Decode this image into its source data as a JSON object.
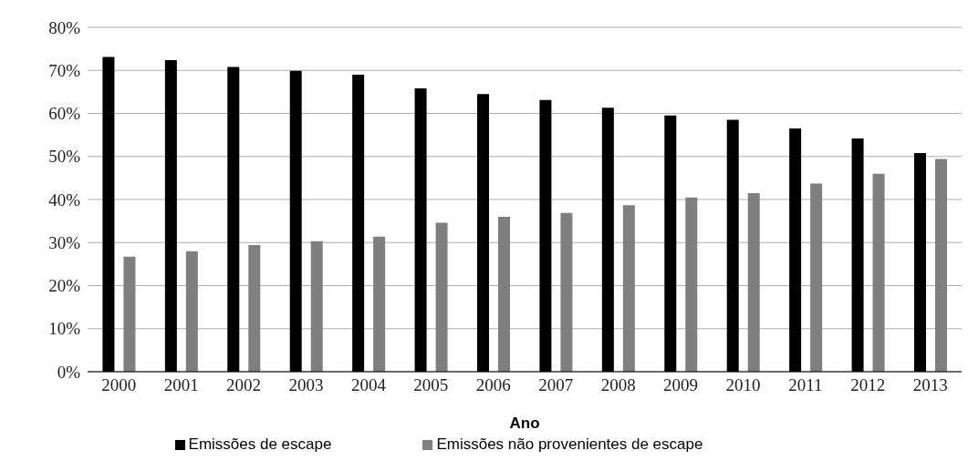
{
  "chart_data": {
    "type": "bar",
    "xlabel": "Ano",
    "categories": [
      "2000",
      "2001",
      "2002",
      "2003",
      "2004",
      "2005",
      "2006",
      "2007",
      "2008",
      "2009",
      "2010",
      "2011",
      "2012",
      "2013"
    ],
    "series": [
      {
        "name": "Emissões de escape",
        "color": "#000000",
        "values": [
          73.1,
          72.4,
          70.8,
          69.9,
          69.0,
          65.8,
          64.5,
          63.1,
          61.3,
          59.5,
          58.5,
          56.5,
          54.2,
          50.8
        ]
      },
      {
        "name": "Emissões não provenientes de escape",
        "color": "#7f7f7f",
        "values": [
          26.7,
          28.0,
          29.4,
          30.3,
          31.4,
          34.6,
          36.0,
          36.9,
          38.7,
          40.5,
          41.5,
          43.7,
          46.0,
          49.4
        ]
      }
    ],
    "ylim": [
      0,
      80
    ],
    "yticks": [
      {
        "value": 0,
        "label": "0%"
      },
      {
        "value": 10,
        "label": "10%"
      },
      {
        "value": 20,
        "label": "20%"
      },
      {
        "value": 30,
        "label": "30%"
      },
      {
        "value": 40,
        "label": "40%"
      },
      {
        "value": 50,
        "label": "50%"
      },
      {
        "value": 60,
        "label": "60%"
      },
      {
        "value": 70,
        "label": "70%"
      },
      {
        "value": 80,
        "label": "80%"
      }
    ],
    "grid": "y",
    "legend": "bottom"
  }
}
